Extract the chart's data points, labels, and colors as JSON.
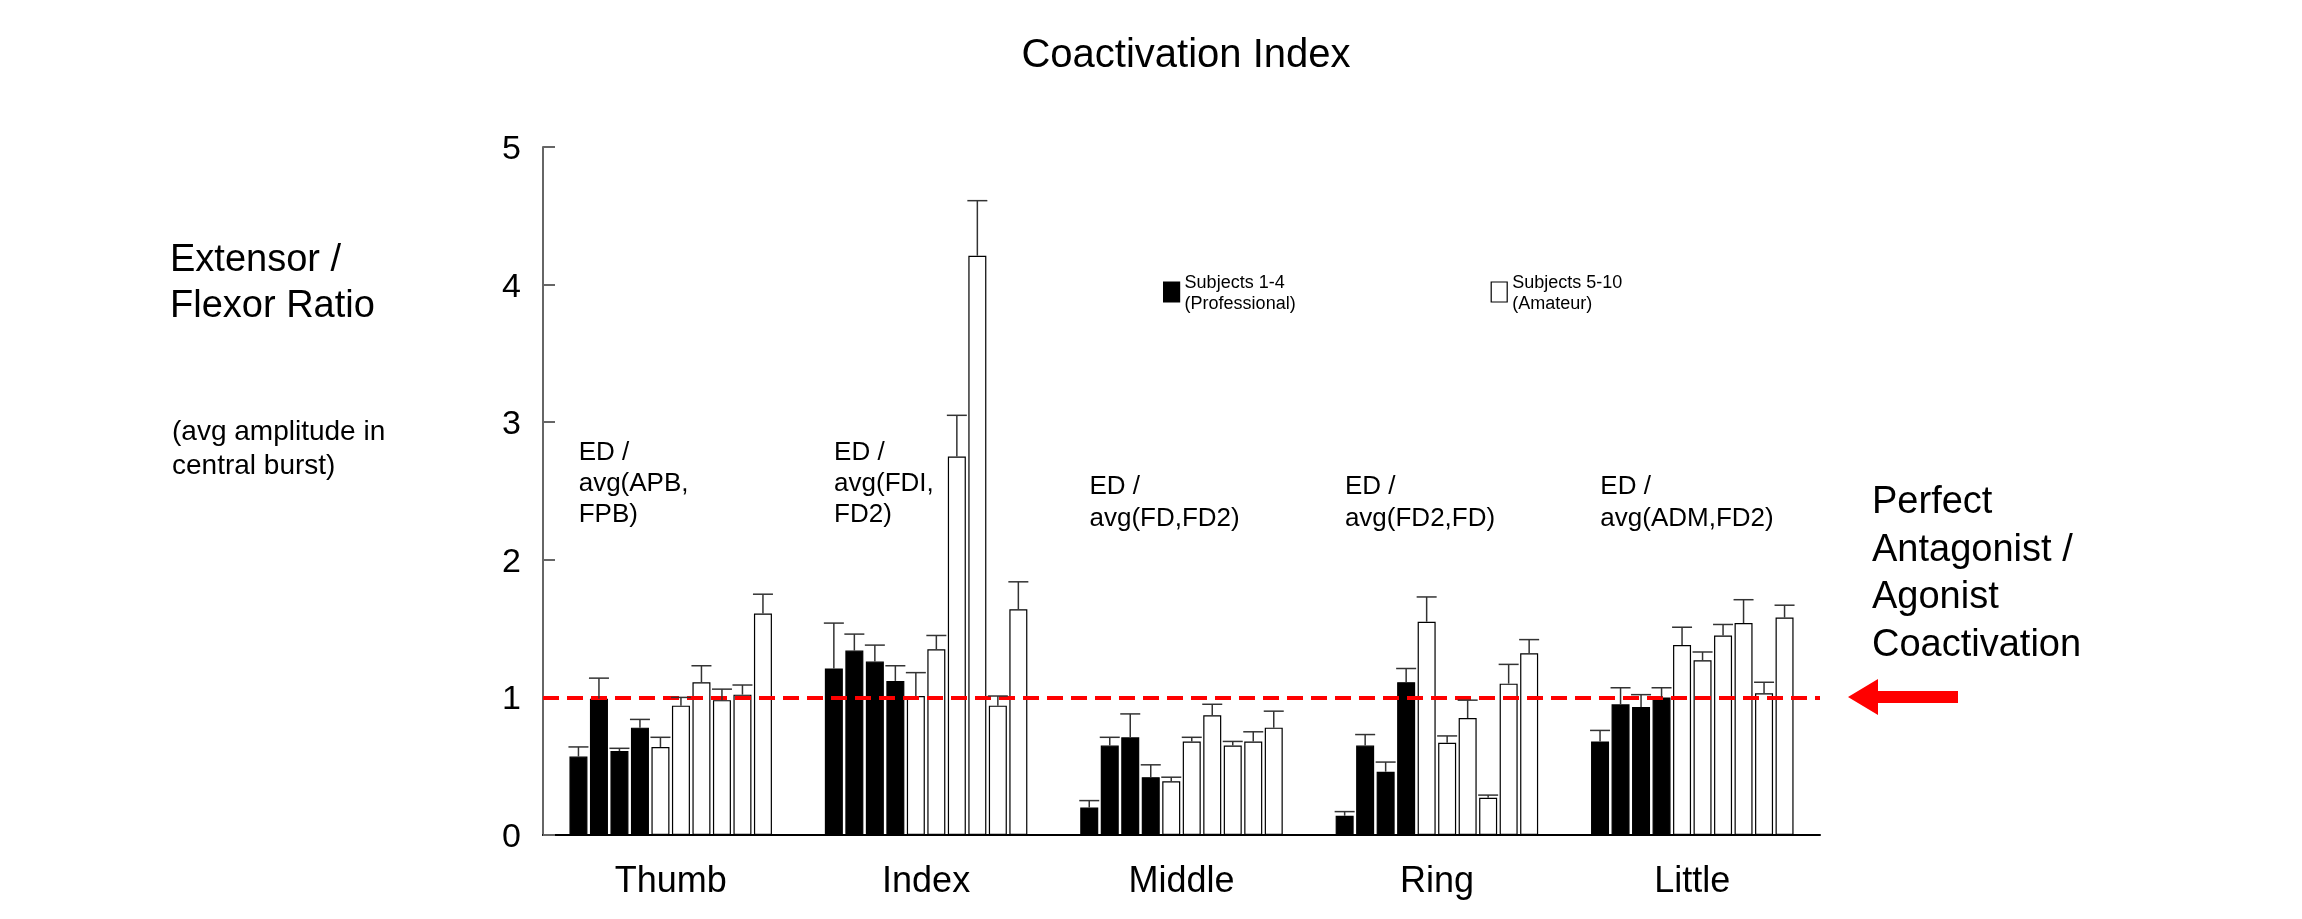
{
  "chart_data": {
    "type": "bar",
    "title": "Coactivation Index",
    "ylabel": "Extensor / Flexor Ratio",
    "annotations": [
      "(avg amplitude in central burst)",
      "ED / avg(APB, FPB)",
      "ED / avg(FDI, FD2)",
      "ED / avg(FD,FD2)",
      "ED / avg(FD2,FD)",
      "ED / avg(ADM,FD2)"
    ],
    "categories": [
      "Thumb",
      "Index",
      "Middle",
      "Ring",
      "Little"
    ],
    "series": [
      {
        "name": "Subjects 1-4 (Professional)",
        "color": "#000000",
        "values": [
          0.57,
          1.21,
          0.2,
          0.14,
          0.68
        ],
        "errors": [
          0.07,
          0.33,
          0.05,
          0.03,
          0.08
        ]
      },
      {
        "color": "#000000",
        "values": [
          0.99,
          1.34,
          0.65,
          0.65,
          0.95
        ],
        "errors": [
          0.15,
          0.12,
          0.06,
          0.08,
          0.12
        ]
      },
      {
        "color": "#000000",
        "values": [
          0.61,
          1.26,
          0.71,
          0.46,
          0.93
        ],
        "errors": [
          0.02,
          0.12,
          0.17,
          0.07,
          0.09
        ]
      },
      {
        "color": "#000000",
        "values": [
          0.78,
          1.12,
          0.42,
          1.11,
          1.0
        ],
        "errors": [
          0.06,
          0.11,
          0.09,
          0.1,
          0.07
        ]
      },
      {
        "name": "Subjects 5-10 (Amateur)",
        "color": "#ffffff",
        "values": [
          0.64,
          1.01,
          0.39,
          1.55,
          1.38
        ],
        "errors": [
          0.07,
          0.17,
          0.03,
          0.18,
          0.13
        ]
      },
      {
        "color": "#ffffff",
        "values": [
          0.94,
          1.35,
          0.68,
          0.67,
          1.27
        ],
        "errors": [
          0.06,
          0.1,
          0.03,
          0.05,
          0.06
        ]
      },
      {
        "color": "#ffffff",
        "values": [
          1.11,
          2.75,
          0.87,
          0.85,
          1.45
        ],
        "errors": [
          0.12,
          0.3,
          0.08,
          0.13,
          0.08
        ]
      },
      {
        "color": "#ffffff",
        "values": [
          0.98,
          4.21,
          0.65,
          0.27,
          1.54
        ],
        "errors": [
          0.08,
          0.4,
          0.03,
          0.02,
          0.17
        ]
      },
      {
        "color": "#ffffff",
        "values": [
          1.02,
          0.94,
          0.68,
          1.1,
          1.03
        ],
        "errors": [
          0.07,
          0.07,
          0.07,
          0.14,
          0.08
        ]
      },
      {
        "color": "#ffffff",
        "values": [
          1.61,
          1.64,
          0.78,
          1.32,
          1.58
        ],
        "errors": [
          0.14,
          0.2,
          0.12,
          0.1,
          0.09
        ]
      }
    ],
    "ylim": [
      0,
      5
    ],
    "yticks": [
      0,
      1,
      2,
      3,
      4,
      5
    ],
    "ref_lines": [
      {
        "axis": "y",
        "value": 1,
        "label": "Perfect Antagonist / Agonist Coactivation",
        "color": "#ff0000",
        "line_style": "dashed"
      }
    ],
    "legend": "top"
  }
}
